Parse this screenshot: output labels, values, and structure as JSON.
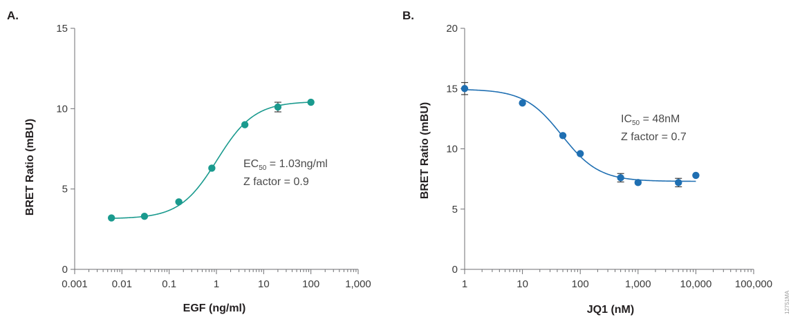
{
  "chart_data": [
    {
      "type": "scatter",
      "panel_label": "A.",
      "x": [
        0.006,
        0.03,
        0.16,
        0.8,
        4,
        20,
        100
      ],
      "y": [
        3.2,
        3.3,
        4.2,
        6.3,
        9.0,
        10.1,
        10.4
      ],
      "error": [
        0,
        0,
        0,
        0,
        0,
        0.3,
        0
      ],
      "fit": {
        "bottom": 3.15,
        "top": 10.45,
        "ec50": 1.03,
        "hill": 1.1
      },
      "xscale": "log",
      "xlim": [
        0.001,
        1000
      ],
      "ylim": [
        0,
        15
      ],
      "xticks": [
        0.001,
        0.01,
        0.1,
        1,
        10,
        100,
        1000
      ],
      "xtick_labels": [
        "0.001",
        "0.01",
        "0.1",
        "1",
        "10",
        "100",
        "1,000"
      ],
      "yticks": [
        0,
        5,
        10,
        15
      ],
      "ytick_labels": [
        "0",
        "5",
        "10",
        "15"
      ],
      "xlabel": "EGF (ng/ml)",
      "ylabel": "BRET Ratio (mBU)",
      "annotation": {
        "main": "EC",
        "sub": "50",
        "rest": " = 1.03ng/ml",
        "line2": "Z factor = 0.9"
      },
      "color": "#1a9a8e",
      "grid": false
    },
    {
      "type": "scatter",
      "panel_label": "B.",
      "x": [
        1,
        10,
        50,
        100,
        500,
        1000,
        5000,
        10000
      ],
      "y": [
        15.0,
        13.8,
        11.1,
        9.6,
        7.6,
        7.2,
        7.2,
        7.8
      ],
      "error": [
        0.5,
        0,
        0,
        0,
        0.35,
        0,
        0.35,
        0
      ],
      "fit": {
        "bottom": 7.3,
        "top": 14.95,
        "ic50": 48,
        "hill": 1.35
      },
      "xscale": "log",
      "xlim": [
        1,
        100000
      ],
      "ylim": [
        0,
        20
      ],
      "xticks": [
        1,
        10,
        100,
        1000,
        10000,
        100000
      ],
      "xtick_labels": [
        "1",
        "10",
        "100",
        "1,000",
        "10,000",
        "100,000"
      ],
      "yticks": [
        0,
        5,
        10,
        15,
        20
      ],
      "ytick_labels": [
        "0",
        "5",
        "10",
        "15",
        "20"
      ],
      "xlabel": "JQ1 (nM)",
      "ylabel": "BRET Ratio (mBU)",
      "annotation": {
        "main": "IC",
        "sub": "50",
        "rest": " = 48nM",
        "line2": "Z factor = 0.7"
      },
      "color": "#1f6fb2",
      "grid": false
    }
  ],
  "footer_code": "12751MA"
}
